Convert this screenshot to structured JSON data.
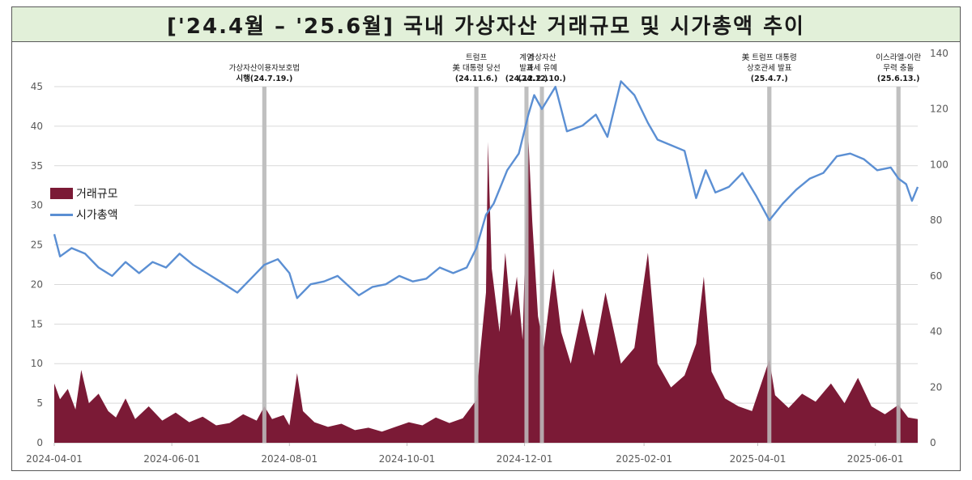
{
  "title": "['24.4월 – '25.6월] 국내 가상자산 거래규모 및 시가총액 추이",
  "chart_data": {
    "type": "area+line",
    "x_start": "2024-04-01",
    "x_end": "2025-06-23",
    "x_ticks": [
      "2024-04-01",
      "2024-06-01",
      "2024-08-01",
      "2024-10-01",
      "2024-12-01",
      "2025-02-01",
      "2025-04-01",
      "2025-06-01"
    ],
    "y_left": {
      "range": [
        0,
        45
      ],
      "ticks": [
        0,
        5,
        10,
        15,
        20,
        25,
        30,
        35,
        40,
        45
      ]
    },
    "y_right": {
      "range": [
        0,
        140
      ],
      "ticks": [
        0,
        20,
        40,
        60,
        80,
        100,
        120,
        140
      ]
    },
    "legend": {
      "placement": "left-middle",
      "entries": [
        "거래규모",
        "시가총액"
      ]
    },
    "grid": "horizontal",
    "series": [
      {
        "name": "거래규모",
        "kind": "area",
        "axis": "left",
        "color": "#7b1a36",
        "points": [
          [
            "2024-04-01",
            7.5
          ],
          [
            "2024-04-04",
            5.5
          ],
          [
            "2024-04-08",
            6.8
          ],
          [
            "2024-04-12",
            4.2
          ],
          [
            "2024-04-15",
            9.2
          ],
          [
            "2024-04-19",
            5.0
          ],
          [
            "2024-04-24",
            6.2
          ],
          [
            "2024-04-29",
            4.0
          ],
          [
            "2024-05-03",
            3.2
          ],
          [
            "2024-05-08",
            5.6
          ],
          [
            "2024-05-13",
            3.0
          ],
          [
            "2024-05-20",
            4.6
          ],
          [
            "2024-05-27",
            2.8
          ],
          [
            "2024-06-03",
            3.8
          ],
          [
            "2024-06-10",
            2.6
          ],
          [
            "2024-06-17",
            3.3
          ],
          [
            "2024-06-24",
            2.2
          ],
          [
            "2024-07-01",
            2.5
          ],
          [
            "2024-07-08",
            3.6
          ],
          [
            "2024-07-15",
            2.8
          ],
          [
            "2024-07-19",
            4.6
          ],
          [
            "2024-07-23",
            3.0
          ],
          [
            "2024-07-29",
            3.5
          ],
          [
            "2024-08-01",
            2.2
          ],
          [
            "2024-08-05",
            8.8
          ],
          [
            "2024-08-08",
            4.0
          ],
          [
            "2024-08-14",
            2.6
          ],
          [
            "2024-08-21",
            2.0
          ],
          [
            "2024-08-28",
            2.4
          ],
          [
            "2024-09-04",
            1.6
          ],
          [
            "2024-09-11",
            1.9
          ],
          [
            "2024-09-18",
            1.4
          ],
          [
            "2024-09-25",
            2.0
          ],
          [
            "2024-10-02",
            2.6
          ],
          [
            "2024-10-09",
            2.2
          ],
          [
            "2024-10-16",
            3.2
          ],
          [
            "2024-10-23",
            2.5
          ],
          [
            "2024-10-30",
            3.1
          ],
          [
            "2024-11-06",
            5.4
          ],
          [
            "2024-11-08",
            11.5
          ],
          [
            "2024-11-11",
            19.0
          ],
          [
            "2024-11-12",
            38.0
          ],
          [
            "2024-11-14",
            22.0
          ],
          [
            "2024-11-18",
            14.0
          ],
          [
            "2024-11-21",
            24.0
          ],
          [
            "2024-11-24",
            16.0
          ],
          [
            "2024-11-27",
            21.0
          ],
          [
            "2024-11-30",
            13.0
          ],
          [
            "2024-12-03",
            38.5
          ],
          [
            "2024-12-05",
            28.0
          ],
          [
            "2024-12-08",
            16.0
          ],
          [
            "2024-12-11",
            12.0
          ],
          [
            "2024-12-16",
            22.0
          ],
          [
            "2024-12-20",
            14.0
          ],
          [
            "2024-12-25",
            10.0
          ],
          [
            "2024-12-31",
            17.0
          ],
          [
            "2025-01-06",
            11.0
          ],
          [
            "2025-01-12",
            19.0
          ],
          [
            "2025-01-20",
            10.0
          ],
          [
            "2025-01-27",
            12.0
          ],
          [
            "2025-02-03",
            24.0
          ],
          [
            "2025-02-08",
            10.0
          ],
          [
            "2025-02-15",
            7.0
          ],
          [
            "2025-02-22",
            8.5
          ],
          [
            "2025-02-28",
            12.5
          ],
          [
            "2025-03-04",
            21.0
          ],
          [
            "2025-03-08",
            9.0
          ],
          [
            "2025-03-15",
            5.6
          ],
          [
            "2025-03-22",
            4.6
          ],
          [
            "2025-03-29",
            4.0
          ],
          [
            "2025-04-07",
            10.5
          ],
          [
            "2025-04-10",
            6.0
          ],
          [
            "2025-04-17",
            4.4
          ],
          [
            "2025-04-24",
            6.2
          ],
          [
            "2025-05-01",
            5.2
          ],
          [
            "2025-05-09",
            7.5
          ],
          [
            "2025-05-16",
            5.0
          ],
          [
            "2025-05-23",
            8.2
          ],
          [
            "2025-05-30",
            4.6
          ],
          [
            "2025-06-06",
            3.6
          ],
          [
            "2025-06-13",
            4.8
          ],
          [
            "2025-06-18",
            3.2
          ],
          [
            "2025-06-23",
            3.0
          ]
        ]
      },
      {
        "name": "시가총액",
        "kind": "line",
        "axis": "right",
        "color": "#5b8fd3",
        "points": [
          [
            "2024-04-01",
            75
          ],
          [
            "2024-04-04",
            67
          ],
          [
            "2024-04-10",
            70
          ],
          [
            "2024-04-17",
            68
          ],
          [
            "2024-04-24",
            63
          ],
          [
            "2024-05-01",
            60
          ],
          [
            "2024-05-08",
            65
          ],
          [
            "2024-05-15",
            61
          ],
          [
            "2024-05-22",
            65
          ],
          [
            "2024-05-29",
            63
          ],
          [
            "2024-06-05",
            68
          ],
          [
            "2024-06-12",
            64
          ],
          [
            "2024-06-19",
            61
          ],
          [
            "2024-06-26",
            58
          ],
          [
            "2024-07-05",
            54
          ],
          [
            "2024-07-12",
            59
          ],
          [
            "2024-07-19",
            64
          ],
          [
            "2024-07-26",
            66
          ],
          [
            "2024-08-01",
            61
          ],
          [
            "2024-08-05",
            52
          ],
          [
            "2024-08-12",
            57
          ],
          [
            "2024-08-19",
            58
          ],
          [
            "2024-08-26",
            60
          ],
          [
            "2024-09-06",
            53
          ],
          [
            "2024-09-13",
            56
          ],
          [
            "2024-09-20",
            57
          ],
          [
            "2024-09-27",
            60
          ],
          [
            "2024-10-04",
            58
          ],
          [
            "2024-10-11",
            59
          ],
          [
            "2024-10-18",
            63
          ],
          [
            "2024-10-25",
            61
          ],
          [
            "2024-11-01",
            63
          ],
          [
            "2024-11-06",
            70
          ],
          [
            "2024-11-11",
            82
          ],
          [
            "2024-11-15",
            86
          ],
          [
            "2024-11-22",
            98
          ],
          [
            "2024-11-28",
            104
          ],
          [
            "2024-12-03",
            118
          ],
          [
            "2024-12-06",
            125
          ],
          [
            "2024-12-10",
            120
          ],
          [
            "2024-12-17",
            128
          ],
          [
            "2024-12-23",
            112
          ],
          [
            "2024-12-31",
            114
          ],
          [
            "2025-01-07",
            118
          ],
          [
            "2025-01-13",
            110
          ],
          [
            "2025-01-20",
            130
          ],
          [
            "2025-01-27",
            125
          ],
          [
            "2025-02-03",
            115
          ],
          [
            "2025-02-08",
            109
          ],
          [
            "2025-02-15",
            107
          ],
          [
            "2025-02-22",
            105
          ],
          [
            "2025-02-28",
            88
          ],
          [
            "2025-03-05",
            98
          ],
          [
            "2025-03-10",
            90
          ],
          [
            "2025-03-17",
            92
          ],
          [
            "2025-03-24",
            97
          ],
          [
            "2025-03-31",
            89
          ],
          [
            "2025-04-07",
            80
          ],
          [
            "2025-04-14",
            86
          ],
          [
            "2025-04-21",
            91
          ],
          [
            "2025-04-28",
            95
          ],
          [
            "2025-05-05",
            97
          ],
          [
            "2025-05-12",
            103
          ],
          [
            "2025-05-19",
            104
          ],
          [
            "2025-05-26",
            102
          ],
          [
            "2025-06-02",
            98
          ],
          [
            "2025-06-09",
            99
          ],
          [
            "2025-06-13",
            95
          ],
          [
            "2025-06-17",
            93
          ],
          [
            "2025-06-20",
            87
          ],
          [
            "2025-06-23",
            92
          ]
        ]
      }
    ],
    "annotations": [
      {
        "date": "2024-07-19",
        "lines": [
          "가상자산이용자보호법",
          "시행(24.7.19.)"
        ]
      },
      {
        "date": "2024-11-06",
        "lines": [
          "트럼프",
          "美 대통령 당선",
          "(24.11.6.)"
        ]
      },
      {
        "date": "2024-12-02",
        "lines": [
          "계엄",
          "발표",
          "(24.12.2.)"
        ]
      },
      {
        "date": "2024-12-10",
        "lines": [
          "가상자산",
          "과세 유예",
          "(24.12.10.)"
        ]
      },
      {
        "date": "2025-04-07",
        "lines": [
          "美 트럼프 대통령",
          "상호관세 발표",
          "(25.4.7.)"
        ]
      },
      {
        "date": "2025-06-13",
        "lines": [
          "이스라엘-이란",
          "무력 충돌",
          "(25.6.13.)"
        ]
      }
    ]
  }
}
